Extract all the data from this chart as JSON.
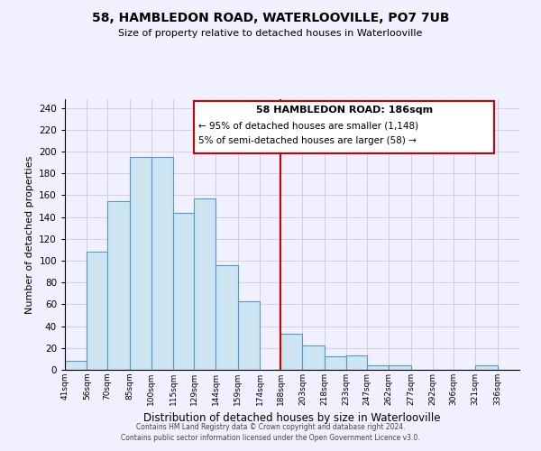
{
  "title": "58, HAMBLEDON ROAD, WATERLOOVILLE, PO7 7UB",
  "subtitle": "Size of property relative to detached houses in Waterlooville",
  "xlabel": "Distribution of detached houses by size in Waterlooville",
  "ylabel": "Number of detached properties",
  "bin_labels": [
    "41sqm",
    "56sqm",
    "70sqm",
    "85sqm",
    "100sqm",
    "115sqm",
    "129sqm",
    "144sqm",
    "159sqm",
    "174sqm",
    "188sqm",
    "203sqm",
    "218sqm",
    "233sqm",
    "247sqm",
    "262sqm",
    "277sqm",
    "292sqm",
    "306sqm",
    "321sqm",
    "336sqm"
  ],
  "bin_edges": [
    41,
    56,
    70,
    85,
    100,
    115,
    129,
    144,
    159,
    174,
    188,
    203,
    218,
    233,
    247,
    262,
    277,
    292,
    306,
    321,
    336
  ],
  "bar_heights": [
    8,
    108,
    155,
    195,
    195,
    144,
    157,
    96,
    63,
    0,
    33,
    22,
    12,
    13,
    4,
    4,
    0,
    0,
    0,
    4,
    0
  ],
  "bar_color": "#cce5f0",
  "bar_edge_color": "#5599cc",
  "reference_line_x": 188,
  "reference_line_color": "#cc0000",
  "annotation_title": "58 HAMBLEDON ROAD: 186sqm",
  "annotation_line1": "← 95% of detached houses are smaller (1,148)",
  "annotation_line2": "5% of semi-detached houses are larger (58) →",
  "annotation_box_edge": "#cc0000",
  "ylim": [
    0,
    248
  ],
  "yticks": [
    0,
    20,
    40,
    60,
    80,
    100,
    120,
    140,
    160,
    180,
    200,
    220,
    240
  ],
  "footer1": "Contains HM Land Registry data © Crown copyright and database right 2024.",
  "footer2": "Contains public sector information licensed under the Open Government Licence v3.0.",
  "background_color": "#f0f0ff",
  "grid_color": "#ccccdd"
}
